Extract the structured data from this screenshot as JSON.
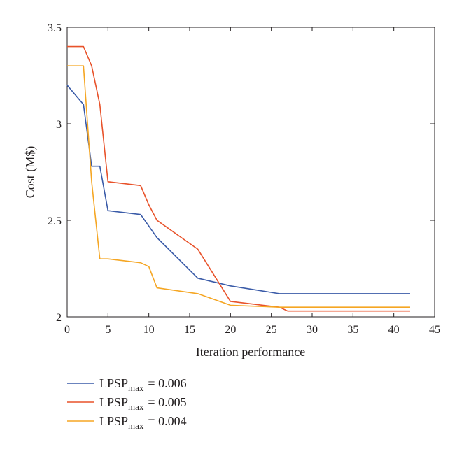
{
  "chart_data": {
    "type": "line",
    "xlabel": "Iteration performance",
    "ylabel": "Cost (M$)",
    "xlim": [
      0,
      45
    ],
    "ylim": [
      2,
      3.5
    ],
    "xticks": [
      0,
      5,
      10,
      15,
      20,
      25,
      30,
      35,
      40,
      45
    ],
    "yticks": [
      2,
      2.5,
      3,
      3.5
    ],
    "xtick_labels": [
      "0",
      "5",
      "10",
      "15",
      "20",
      "25",
      "30",
      "35",
      "40",
      "45"
    ],
    "ytick_labels": [
      "2",
      "2.5",
      "3",
      "3.5"
    ],
    "grid": false,
    "legend_position": "bottom-left, below axes",
    "series": [
      {
        "name_base": "LPSP",
        "name_sub": "max",
        "name_value": "= 0.006",
        "color": "#3a5ba8",
        "points": [
          [
            0,
            3.2
          ],
          [
            2,
            3.1
          ],
          [
            3,
            2.78
          ],
          [
            4,
            2.78
          ],
          [
            5,
            2.55
          ],
          [
            9,
            2.53
          ],
          [
            11,
            2.41
          ],
          [
            16,
            2.2
          ],
          [
            20,
            2.16
          ],
          [
            26,
            2.12
          ],
          [
            42,
            2.12
          ]
        ]
      },
      {
        "name_base": "LPSP",
        "name_sub": "max",
        "name_value": "= 0.005",
        "color": "#e8522a",
        "points": [
          [
            0,
            3.4
          ],
          [
            2,
            3.4
          ],
          [
            3,
            3.3
          ],
          [
            4,
            3.1
          ],
          [
            5,
            2.7
          ],
          [
            9,
            2.68
          ],
          [
            10,
            2.58
          ],
          [
            11,
            2.5
          ],
          [
            16,
            2.35
          ],
          [
            20,
            2.08
          ],
          [
            26,
            2.05
          ],
          [
            27,
            2.03
          ],
          [
            42,
            2.03
          ]
        ]
      },
      {
        "name_base": "LPSP",
        "name_sub": "max",
        "name_value": "= 0.004",
        "color": "#f5a623",
        "points": [
          [
            0,
            3.3
          ],
          [
            2,
            3.3
          ],
          [
            3,
            2.7
          ],
          [
            4,
            2.3
          ],
          [
            5,
            2.3
          ],
          [
            9,
            2.28
          ],
          [
            10,
            2.26
          ],
          [
            11,
            2.15
          ],
          [
            16,
            2.12
          ],
          [
            20,
            2.06
          ],
          [
            26,
            2.05
          ],
          [
            42,
            2.05
          ]
        ]
      }
    ]
  }
}
